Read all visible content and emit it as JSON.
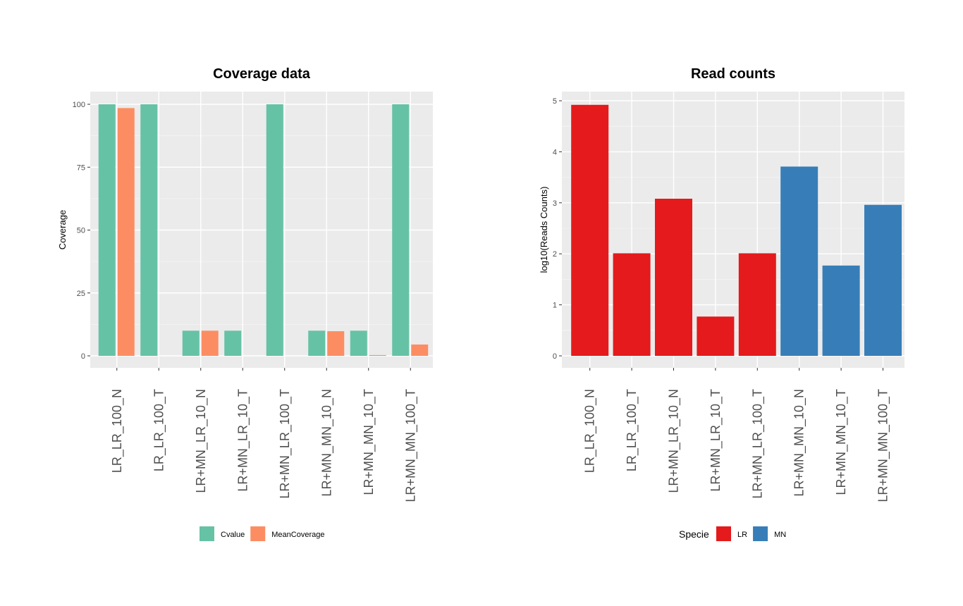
{
  "chart_data": [
    {
      "type": "bar",
      "title": "Coverage data",
      "xlabel": "",
      "ylabel": "Coverage",
      "ylim": [
        0,
        100
      ],
      "yticks": [
        "0",
        "25",
        "50",
        "75",
        "100"
      ],
      "categories": [
        "LR_LR_100_N",
        "LR_LR_100_T",
        "LR+MN_LR_10_N",
        "LR+MN_LR_10_T",
        "LR+MN_LR_100_T",
        "LR+MN_MN_10_N",
        "LR+MN_MN_10_T",
        "LR+MN_MN_100_T"
      ],
      "series": [
        {
          "name": "Cvalue",
          "color": "#66c2a5",
          "values": [
            100,
            100,
            10,
            10,
            100,
            10,
            10,
            100
          ]
        },
        {
          "name": "MeanCoverage",
          "color": "#fc8d62",
          "values": [
            98.5,
            0,
            10,
            0,
            0,
            9.8,
            0.3,
            4.5
          ]
        }
      ],
      "grid": true,
      "legend_position": "bottom"
    },
    {
      "type": "bar",
      "title": "Read counts",
      "xlabel": "",
      "ylabel": "log10(Reads Counts)",
      "ylim": [
        0,
        5
      ],
      "yticks": [
        "0",
        "1",
        "2",
        "3",
        "4",
        "5"
      ],
      "categories": [
        "LR_LR_100_N",
        "LR_LR_100_T",
        "LR+MN_LR_10_N",
        "LR+MN_LR_10_T",
        "LR+MN_LR_100_T",
        "LR+MN_MN_10_N",
        "LR+MN_MN_10_T",
        "LR+MN_MN_100_T"
      ],
      "values": [
        4.92,
        2.01,
        3.08,
        0.77,
        2.01,
        3.71,
        1.77,
        2.96
      ],
      "groups": [
        "LR",
        "LR",
        "LR",
        "LR",
        "LR",
        "MN",
        "MN",
        "MN"
      ],
      "legend_title": "Specie",
      "legend": [
        {
          "name": "LR",
          "color": "#e41a1c"
        },
        {
          "name": "MN",
          "color": "#377eb8"
        }
      ],
      "grid": true,
      "legend_position": "bottom"
    }
  ]
}
